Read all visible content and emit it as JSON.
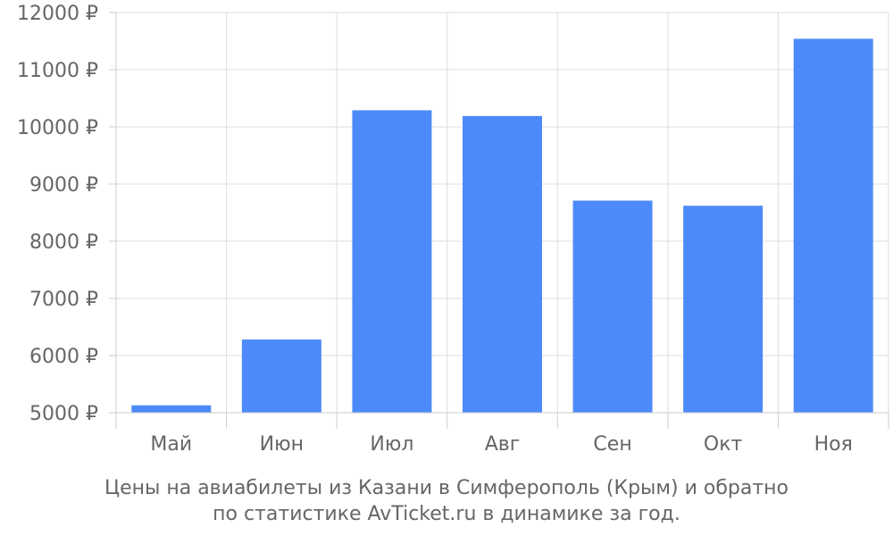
{
  "chart_data": {
    "type": "bar",
    "categories": [
      "Май",
      "Июн",
      "Июл",
      "Авг",
      "Сен",
      "Окт",
      "Ноя"
    ],
    "values": [
      5130,
      6280,
      10290,
      10190,
      8710,
      8620,
      11540
    ],
    "ylim": [
      5000,
      12000
    ],
    "yticks": [
      5000,
      6000,
      7000,
      8000,
      9000,
      10000,
      11000,
      12000
    ],
    "y_tick_suffix": " ₽",
    "grid": true,
    "bar_color": "#4d8af9",
    "caption_line1": "Цены на авиабилеты из Казани в Симферополь (Крым) и обратно",
    "caption_line2": "по статистике AvTicket.ru в динамике за год."
  }
}
